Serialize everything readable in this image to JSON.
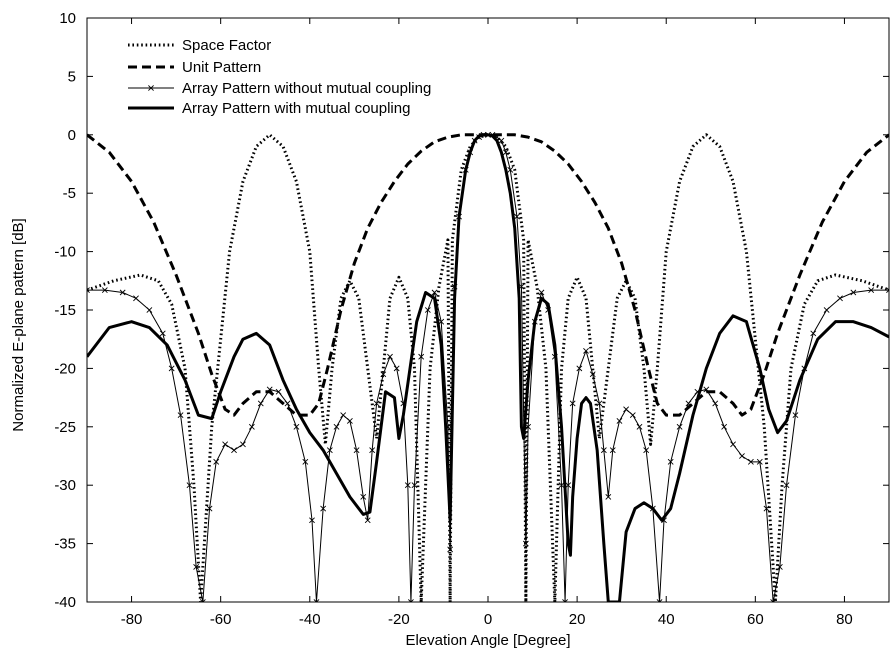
{
  "chart_data": {
    "type": "line",
    "title": "",
    "xlabel": "Elevation Angle [Degree]",
    "ylabel": "Normalized E-plane pattern [dB]",
    "xlim": [
      -90,
      90
    ],
    "ylim": [
      -40,
      10
    ],
    "xticks": [
      -80,
      -60,
      -40,
      -20,
      0,
      20,
      40,
      60,
      80
    ],
    "yticks": [
      10,
      5,
      0,
      -5,
      -10,
      -15,
      -20,
      -25,
      -30,
      -35,
      -40
    ],
    "grid": false,
    "legend_position": "top-left",
    "series": [
      {
        "name": "Space Factor",
        "style": "dotted",
        "color": "#000000",
        "x": [
          -90,
          -84,
          -78,
          -74,
          -71,
          -68,
          -66,
          -64.5,
          -62,
          -58,
          -55,
          -52,
          -49,
          -46,
          -43,
          -40,
          -38,
          -36.5,
          -35,
          -33,
          -31,
          -29,
          -27,
          -25,
          -22,
          -20,
          -18,
          -16.5,
          -15,
          -13,
          -11,
          -9,
          -8.5,
          -8,
          -6,
          -4,
          -2,
          0,
          2,
          4,
          6,
          8,
          8.5,
          9,
          11,
          13,
          15,
          16.5,
          18,
          20,
          22,
          25,
          27,
          29,
          31,
          33,
          35,
          36.5,
          38,
          40,
          43,
          46,
          49,
          52,
          55,
          58,
          62,
          64.5,
          66,
          68,
          71,
          74,
          78,
          84,
          90
        ],
        "y": [
          -13.3,
          -12.5,
          -12,
          -12.5,
          -14.5,
          -20,
          -30,
          -40,
          -25,
          -10,
          -4,
          -1,
          0,
          -1,
          -4,
          -10,
          -20,
          -26.5,
          -20,
          -14,
          -12.5,
          -14,
          -20,
          -26,
          -14,
          -12.2,
          -14,
          -20,
          -40,
          -20,
          -13,
          -9,
          -40,
          -9,
          -3,
          -1,
          -0.2,
          0,
          -0.2,
          -1,
          -3,
          -9,
          -40,
          -9,
          -13,
          -20,
          -40,
          -20,
          -14,
          -12.2,
          -14,
          -26,
          -20,
          -14,
          -12.5,
          -14,
          -20,
          -26.5,
          -20,
          -10,
          -4,
          -1,
          0,
          -1,
          -4,
          -10,
          -25,
          -40,
          -30,
          -20,
          -14.5,
          -12.5,
          -12,
          -12.5,
          -13.3
        ]
      },
      {
        "name": "Unit Pattern",
        "style": "dashed",
        "color": "#000000",
        "x": [
          -90,
          -85,
          -80,
          -75,
          -70,
          -65,
          -62,
          -59,
          -57,
          -55,
          -52,
          -49,
          -46,
          -43,
          -40,
          -38,
          -36,
          -33,
          -30,
          -27,
          -24,
          -21,
          -18,
          -15,
          -12,
          -9,
          -6,
          -3,
          0,
          3,
          6,
          9,
          12,
          15,
          18,
          21,
          24,
          27,
          30,
          33,
          36,
          38,
          40,
          43,
          46,
          49,
          52,
          55,
          57,
          59,
          62,
          65,
          70,
          75,
          80,
          85,
          90
        ],
        "y": [
          0,
          -1.5,
          -4,
          -7.5,
          -12,
          -17,
          -20.5,
          -23.5,
          -24,
          -23,
          -22,
          -22,
          -23,
          -24,
          -24,
          -23,
          -20,
          -15,
          -11,
          -8,
          -5.8,
          -4,
          -2.5,
          -1.4,
          -0.6,
          -0.2,
          0,
          0,
          0,
          0,
          0,
          -0.2,
          -0.6,
          -1.4,
          -2.5,
          -4,
          -5.8,
          -8,
          -11,
          -15,
          -20,
          -23,
          -24,
          -24,
          -23,
          -22,
          -22,
          -23,
          -24,
          -23.5,
          -20.5,
          -17,
          -12,
          -7.5,
          -4,
          -1.5,
          0
        ]
      },
      {
        "name": "Array Pattern without mutual coupling",
        "style": "solid-thin-x-markers",
        "color": "#000000",
        "x": [
          -90,
          -86,
          -82,
          -79,
          -76,
          -73,
          -71,
          -69,
          -67,
          -65.5,
          -64,
          -62.5,
          -61,
          -59,
          -57,
          -55,
          -53,
          -51,
          -49,
          -47,
          -45,
          -43,
          -41,
          -39.5,
          -38.5,
          -37,
          -35.5,
          -34,
          -32.5,
          -31,
          -29.5,
          -28,
          -27,
          -26,
          -25,
          -23.5,
          -22,
          -20.5,
          -19,
          -18,
          -17.3,
          -16.5,
          -15,
          -13.5,
          -12,
          -10.5,
          -9,
          -8.5,
          -7.5,
          -6.5,
          -5,
          -4,
          -3,
          -2,
          -1,
          0,
          1,
          2,
          3,
          4,
          5,
          6.5,
          7.5,
          8.5,
          9,
          10.5,
          12,
          13.5,
          15,
          16.5,
          17.3,
          18,
          19,
          20.5,
          22,
          23.5,
          25,
          26,
          27,
          28,
          29.5,
          31,
          32.5,
          34,
          35.5,
          37,
          38.5,
          39.5,
          41,
          43,
          45,
          47,
          49,
          51,
          53,
          55,
          57,
          59,
          61,
          62.5,
          64,
          65.5,
          67,
          69,
          71,
          73,
          76,
          79,
          82,
          86,
          90
        ],
        "y": [
          -13.3,
          -13.3,
          -13.5,
          -14,
          -15,
          -17,
          -20,
          -24,
          -30,
          -37,
          -40,
          -32,
          -28,
          -26.5,
          -27,
          -26.5,
          -25,
          -23,
          -21.8,
          -22,
          -23,
          -25,
          -28,
          -33,
          -40,
          -32,
          -27,
          -25,
          -24,
          -24.5,
          -27,
          -31,
          -33,
          -27,
          -23,
          -20.5,
          -19,
          -20,
          -23,
          -30,
          -40,
          -30,
          -19,
          -15,
          -13.5,
          -16,
          -25,
          -35.5,
          -13,
          -7,
          -3,
          -1.5,
          -0.5,
          -0.2,
          0,
          0,
          0,
          -0.2,
          -0.5,
          -1.5,
          -3,
          -7,
          -13,
          -35,
          -25,
          -16,
          -13.5,
          -15,
          -19,
          -30,
          -40,
          -30,
          -23,
          -20,
          -18.5,
          -20.5,
          -23,
          -27,
          -31,
          -27,
          -24.5,
          -23.5,
          -24,
          -25,
          -27,
          -32,
          -40,
          -33,
          -28,
          -25,
          -23,
          -22,
          -21.8,
          -23,
          -25,
          -26.5,
          -27.5,
          -28,
          -28,
          -32,
          -40,
          -37,
          -30,
          -24,
          -20,
          -17,
          -15,
          -14,
          -13.5,
          -13.3,
          -13.3
        ]
      },
      {
        "name": "Array Pattern with mutual coupling",
        "style": "solid-thick",
        "color": "#000000",
        "x": [
          -90,
          -85,
          -80,
          -76,
          -72,
          -68,
          -65,
          -62,
          -60,
          -57,
          -55,
          -52,
          -49,
          -46,
          -43,
          -40,
          -37,
          -34,
          -31,
          -28,
          -26.5,
          -25,
          -23,
          -21,
          -20,
          -19,
          -17.5,
          -16,
          -14,
          -12,
          -10.5,
          -9.5,
          -8.5,
          -7.5,
          -6.5,
          -5,
          -4,
          -3,
          -2,
          -1,
          0,
          1,
          2,
          3,
          4,
          5,
          6,
          7,
          7.5,
          8,
          9,
          10.5,
          12,
          13.5,
          15,
          16.5,
          18,
          18.5,
          19,
          20,
          21,
          22,
          23,
          24.5,
          26,
          27,
          28,
          29.5,
          31,
          33,
          35,
          37,
          39,
          41,
          43,
          46,
          49,
          52,
          55,
          58,
          61,
          63,
          65,
          67,
          70,
          74,
          78,
          82,
          86,
          90
        ],
        "y": [
          -19,
          -16.5,
          -16,
          -16.5,
          -18,
          -21,
          -24,
          -24.3,
          -22,
          -19,
          -17.5,
          -17,
          -18,
          -21,
          -23.5,
          -25.5,
          -27,
          -29,
          -31,
          -32.5,
          -32.3,
          -28,
          -22,
          -22.5,
          -26,
          -24,
          -20,
          -16,
          -13.5,
          -14,
          -18,
          -25,
          -33,
          -14,
          -7,
          -3,
          -1.5,
          -0.5,
          -0.1,
          0,
          0,
          -0.1,
          -0.5,
          -1.5,
          -3,
          -5,
          -8,
          -14,
          -25,
          -26,
          -21,
          -16,
          -14,
          -14.5,
          -18,
          -25,
          -35,
          -36,
          -31,
          -26,
          -23,
          -22.5,
          -23,
          -27,
          -35,
          -40,
          -40,
          -40,
          -34,
          -32,
          -31.5,
          -32,
          -33,
          -32,
          -29,
          -24,
          -20,
          -17,
          -15.5,
          -16,
          -20,
          -23.5,
          -25.5,
          -24.5,
          -21,
          -17.5,
          -16,
          -16,
          -16.5,
          -17.3
        ]
      }
    ]
  }
}
